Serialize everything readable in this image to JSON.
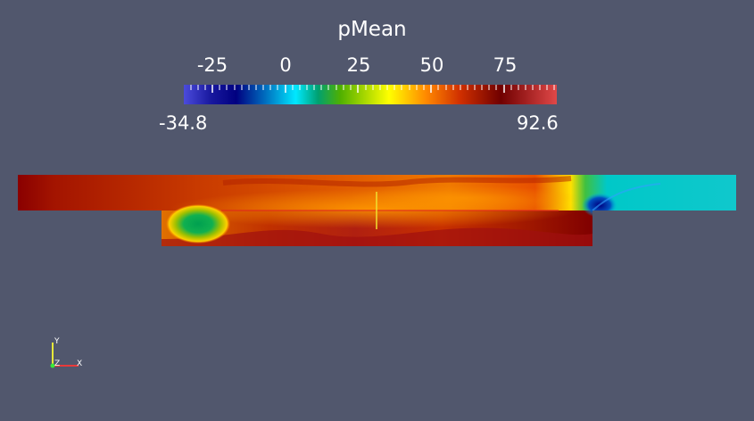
{
  "colorbar": {
    "title": "pMean",
    "ticks": [
      "-25",
      "0",
      "25",
      "50",
      "75"
    ],
    "tick_values": [
      -25,
      0,
      25,
      50,
      75
    ],
    "range_min_label": "-34.8",
    "range_max_label": "92.6",
    "range": [
      -34.8,
      92.6
    ],
    "colormap": [
      "#4b4bdb",
      "#000080",
      "#0070c0",
      "#00e8ff",
      "#00a070",
      "#50b000",
      "#ffff00",
      "#ff8800",
      "#d03000",
      "#700000",
      "#e04848"
    ]
  },
  "axes_widget": {
    "y_label": "Y",
    "z_label": "Z",
    "x_label": "X",
    "colors": {
      "x": "#e83a3a",
      "y": "#e8e83a",
      "z": "#3ae83a"
    }
  },
  "colors": {
    "background": "#51576d"
  }
}
